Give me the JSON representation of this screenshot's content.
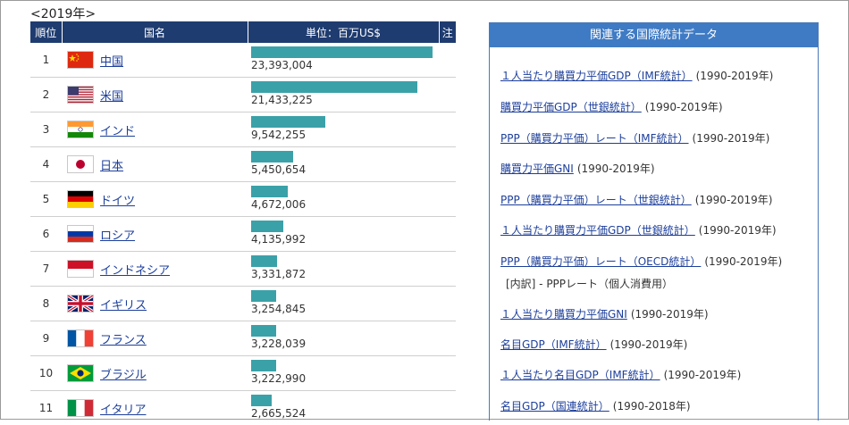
{
  "year_title": "<2019年>",
  "table": {
    "headers": [
      "順位",
      "国名",
      "単位：百万US$",
      "注"
    ],
    "max_value": 23393004,
    "rows": [
      {
        "rank": "1",
        "country": "中国",
        "flag": "china",
        "value": 23393004,
        "value_text": "23,393,004"
      },
      {
        "rank": "2",
        "country": "米国",
        "flag": "usa",
        "value": 21433225,
        "value_text": "21,433,225"
      },
      {
        "rank": "3",
        "country": "インド",
        "flag": "india",
        "value": 9542255,
        "value_text": "9,542,255"
      },
      {
        "rank": "4",
        "country": "日本",
        "flag": "japan",
        "value": 5450654,
        "value_text": "5,450,654"
      },
      {
        "rank": "5",
        "country": "ドイツ",
        "flag": "germany",
        "value": 4672006,
        "value_text": "4,672,006"
      },
      {
        "rank": "6",
        "country": "ロシア",
        "flag": "russia",
        "value": 4135992,
        "value_text": "4,135,992"
      },
      {
        "rank": "7",
        "country": "インドネシア",
        "flag": "indonesia",
        "value": 3331872,
        "value_text": "3,331,872"
      },
      {
        "rank": "8",
        "country": "イギリス",
        "flag": "uk",
        "value": 3254845,
        "value_text": "3,254,845"
      },
      {
        "rank": "9",
        "country": "フランス",
        "flag": "france",
        "value": 3228039,
        "value_text": "3,228,039"
      },
      {
        "rank": "10",
        "country": "ブラジル",
        "flag": "brazil",
        "value": 3222990,
        "value_text": "3,222,990"
      },
      {
        "rank": "11",
        "country": "イタリア",
        "flag": "italy",
        "value": 2665524,
        "value_text": "2,665,524"
      }
    ]
  },
  "related": {
    "header": "関連する国際統計データ",
    "items": [
      {
        "label": "１人当たり購買力平価GDP（IMF統計）",
        "period": "(1990-2019年)"
      },
      {
        "label": "購買力平価GDP（世銀統計）",
        "period": "(1990-2019年)"
      },
      {
        "label": "PPP（購買力平価）レート（IMF統計）",
        "period": "(1990-2019年)"
      },
      {
        "label": "購買力平価GNI",
        "period": "(1990-2019年)"
      },
      {
        "label": "PPP（購買力平価）レート（世銀統計）",
        "period": "(1990-2019年)"
      },
      {
        "label": "１人当たり購買力平価GDP（世銀統計）",
        "period": "(1990-2019年)"
      },
      {
        "label": "PPP（購買力平価）レート（OECD統計）",
        "period": "(1990-2019年)"
      },
      {
        "label": "１人当たり購買力平価GNI",
        "period": "(1990-2019年)"
      },
      {
        "label": "名目GDP（IMF統計）",
        "period": "(1990-2019年)"
      },
      {
        "label": "１人当たり名目GDP（IMF統計）",
        "period": "(1990-2019年)"
      },
      {
        "label": "名目GDP（国連統計）",
        "period": "(1990-2018年)"
      }
    ],
    "sub_item": "[内訳] - PPPレート（個人消費用）"
  }
}
